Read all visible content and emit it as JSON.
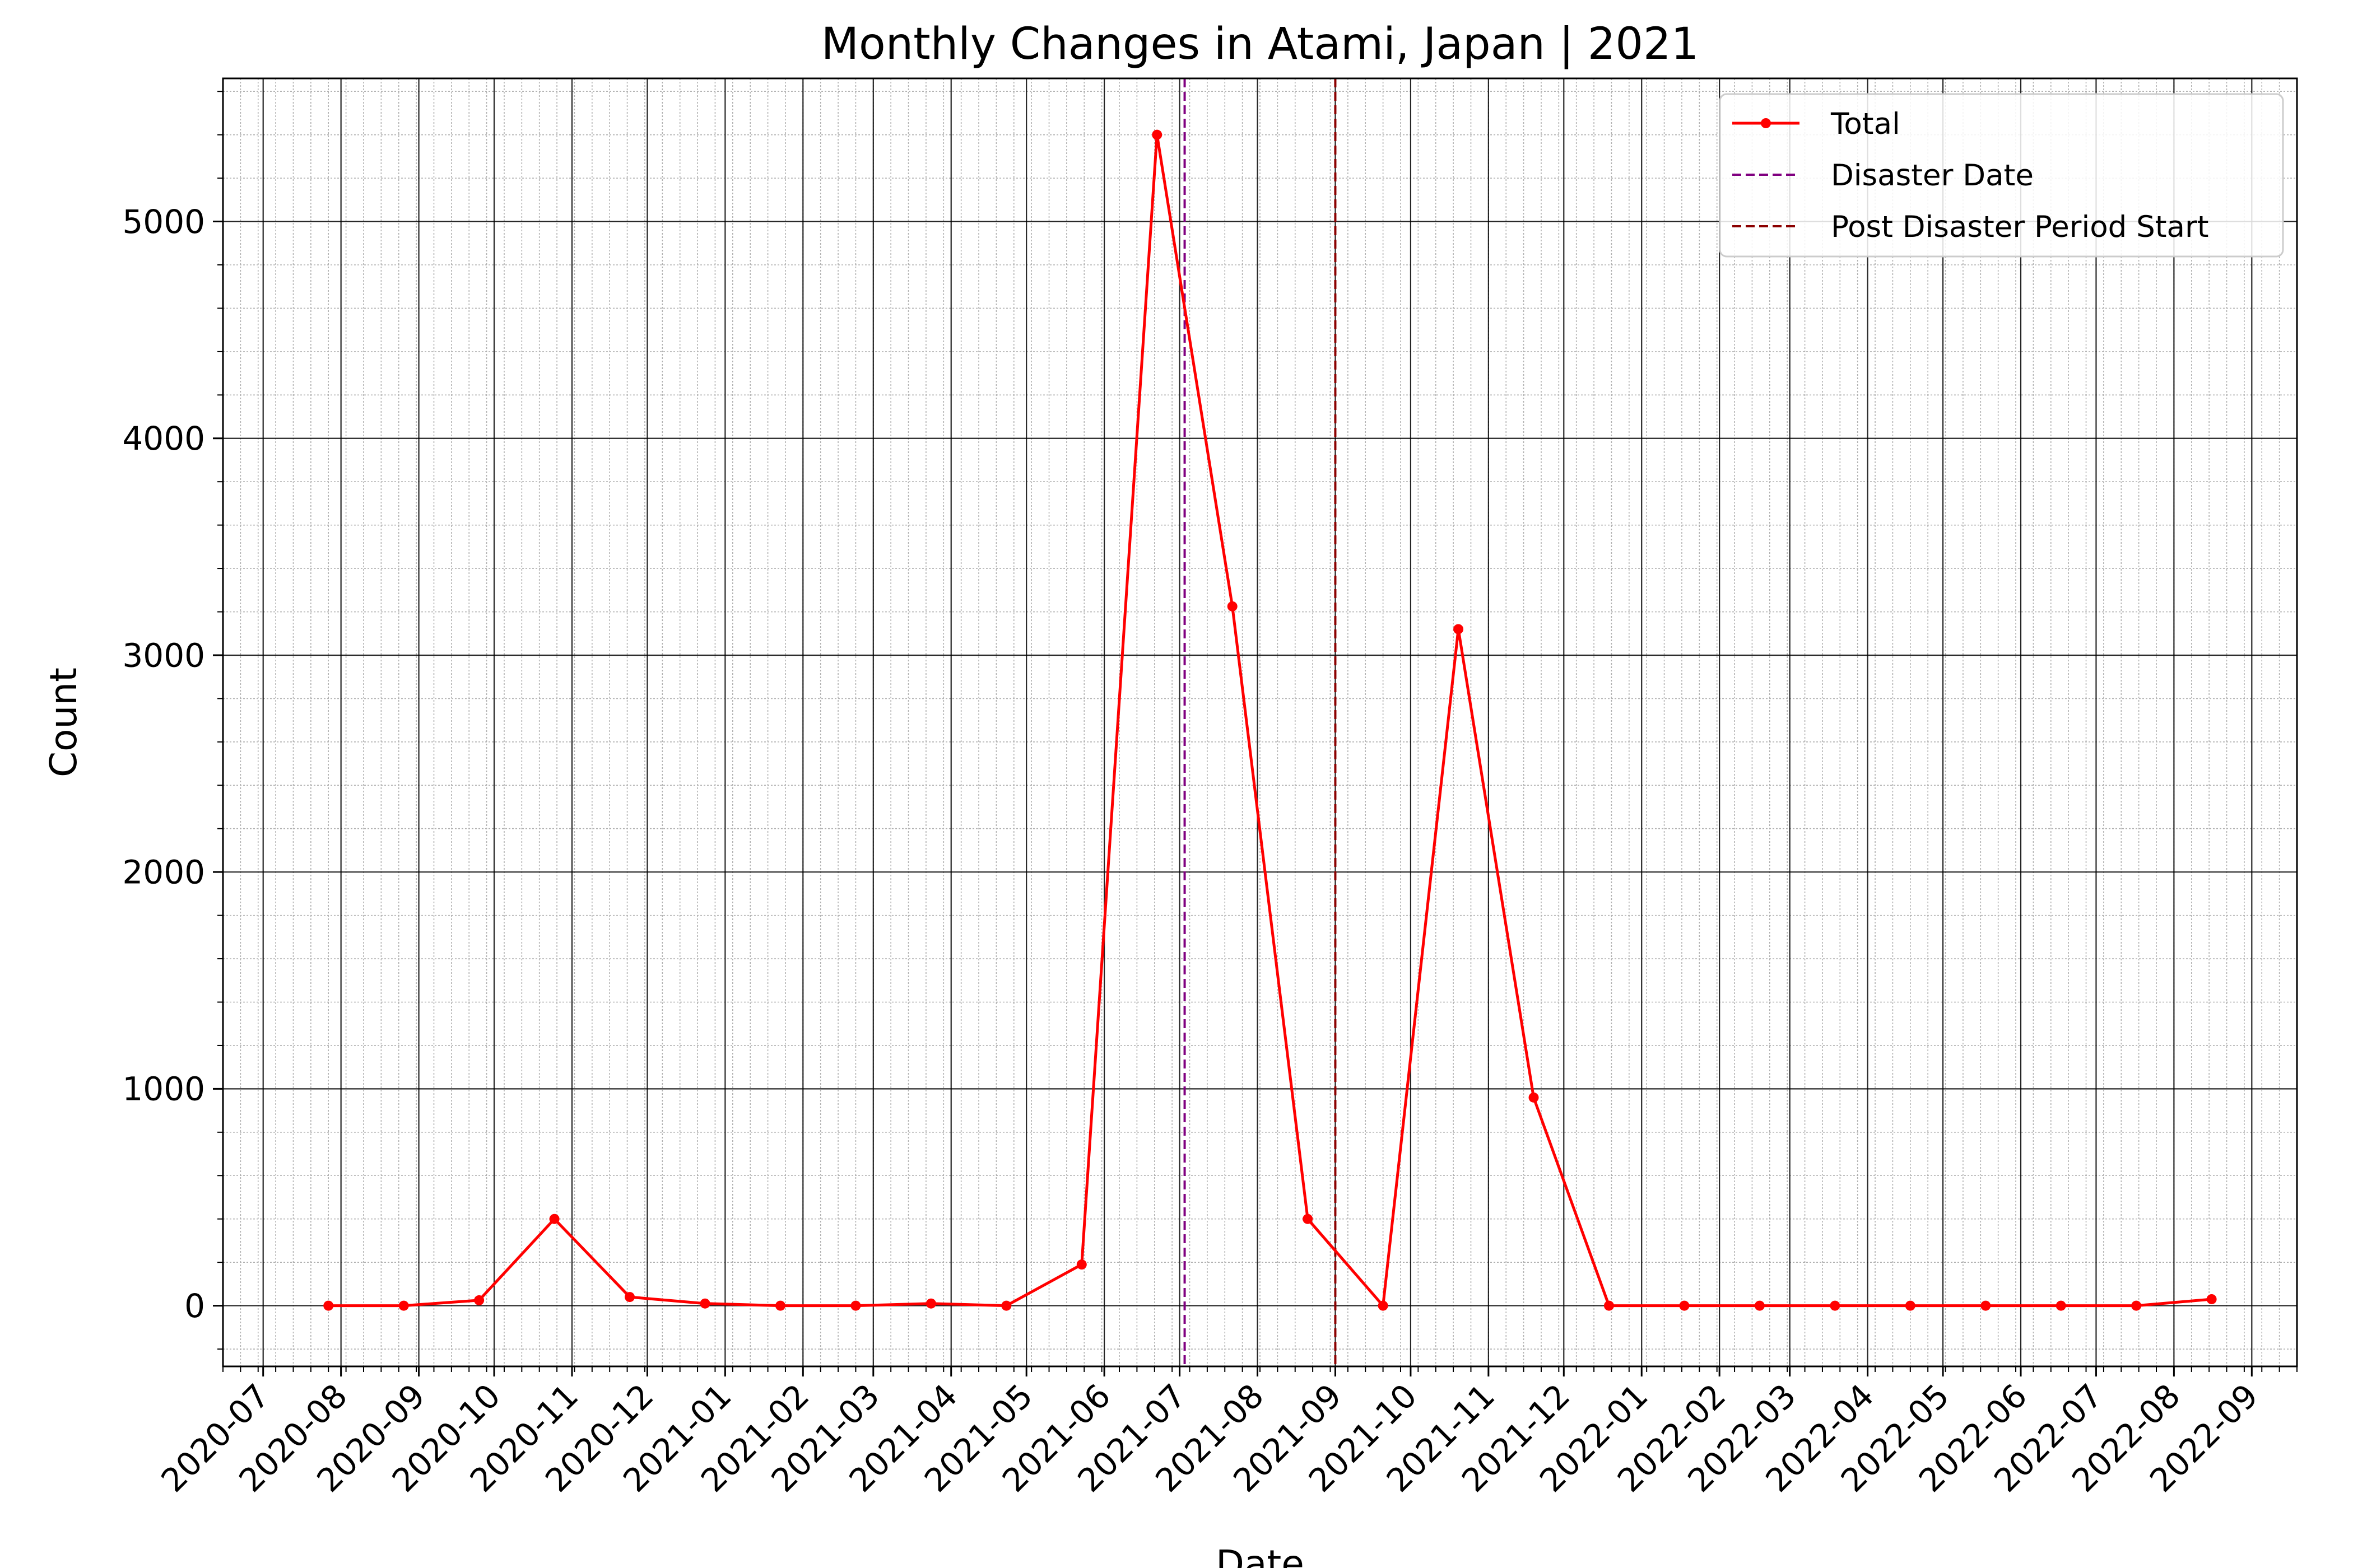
{
  "chart_data": {
    "type": "line",
    "title": "Monthly Changes in Atami, Japan | 2021",
    "xlabel": "Date",
    "ylabel": "Count",
    "ylim": [
      -280,
      5660
    ],
    "xlim": [
      "2020-06-15",
      "2022-09-19"
    ],
    "grid": {
      "major": true,
      "minor": true
    },
    "legend_position": "top-right",
    "x_tick_labels": [
      "2020-07",
      "2020-08",
      "2020-09",
      "2020-10",
      "2020-11",
      "2020-12",
      "2021-01",
      "2021-02",
      "2021-03",
      "2021-04",
      "2021-05",
      "2021-06",
      "2021-07",
      "2021-08",
      "2021-09",
      "2021-10",
      "2021-11",
      "2021-12",
      "2022-01",
      "2022-02",
      "2022-03",
      "2022-04",
      "2022-05",
      "2022-06",
      "2022-07",
      "2022-08",
      "2022-09"
    ],
    "y_ticks": [
      0,
      1000,
      2000,
      3000,
      4000,
      5000
    ],
    "series": [
      {
        "name": "Total",
        "color": "#ff0000",
        "x": [
          "2020-07-27",
          "2020-08-26",
          "2020-09-25",
          "2020-10-25",
          "2020-11-24",
          "2020-12-24",
          "2021-01-23",
          "2021-02-22",
          "2021-03-24",
          "2021-04-23",
          "2021-05-23",
          "2021-06-22",
          "2021-07-22",
          "2021-08-21",
          "2021-09-20",
          "2021-10-20",
          "2021-11-19",
          "2021-12-19",
          "2022-01-18",
          "2022-02-17",
          "2022-03-19",
          "2022-04-18",
          "2022-05-18",
          "2022-06-17",
          "2022-07-17",
          "2022-08-16"
        ],
        "values": [
          0,
          0,
          25,
          400,
          40,
          10,
          0,
          0,
          10,
          0,
          190,
          5400,
          3225,
          400,
          0,
          3120,
          960,
          0,
          0,
          0,
          0,
          0,
          0,
          0,
          0,
          30
        ]
      }
    ],
    "vlines": [
      {
        "name": "Disaster Date",
        "date": "2021-07-03",
        "color": "#800080",
        "style": "dashed"
      },
      {
        "name": "Post Disaster Period Start",
        "date": "2021-09-01",
        "color": "#8b0000",
        "style": "dashed"
      }
    ]
  }
}
